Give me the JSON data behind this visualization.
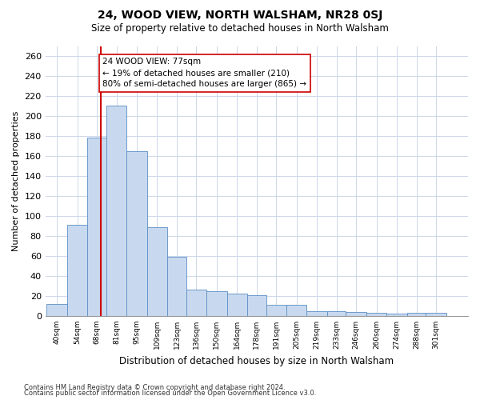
{
  "title": "24, WOOD VIEW, NORTH WALSHAM, NR28 0SJ",
  "subtitle": "Size of property relative to detached houses in North Walsham",
  "xlabel": "Distribution of detached houses by size in North Walsham",
  "ylabel": "Number of detached properties",
  "annotation_line1": "24 WOOD VIEW: 77sqm",
  "annotation_line2": "← 19% of detached houses are smaller (210)",
  "annotation_line3": "80% of semi-detached houses are larger (865) →",
  "bar_color": "#c8d9ef",
  "bar_edge_color": "#5b8ec4",
  "grid_color": "#cdd8ea",
  "vline_color": "#cc0000",
  "vline_x": 77,
  "footer_line1": "Contains HM Land Registry data © Crown copyright and database right 2024.",
  "footer_line2": "Contains public sector information licensed under the Open Government Licence v3.0.",
  "bins": [
    40,
    54,
    68,
    81,
    95,
    109,
    123,
    136,
    150,
    164,
    178,
    191,
    205,
    219,
    233,
    246,
    260,
    274,
    288,
    301,
    315
  ],
  "bar_heights": [
    12,
    91,
    178,
    210,
    165,
    89,
    59,
    26,
    25,
    22,
    21,
    11,
    11,
    5,
    5,
    4,
    3,
    2,
    3,
    3
  ],
  "ylim": [
    0,
    270
  ],
  "yticks": [
    0,
    20,
    40,
    60,
    80,
    100,
    120,
    140,
    160,
    180,
    200,
    220,
    240,
    260
  ],
  "background_color": "#ffffff"
}
